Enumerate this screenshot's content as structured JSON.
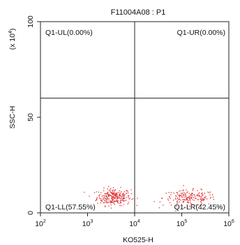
{
  "chart_data": {
    "type": "scatter",
    "title": "F11004A08 : P1",
    "xlabel": "KO525-H",
    "ylabel": "SSC-H",
    "y_multiplier_label": "(x 10",
    "y_multiplier_exp": "4",
    "y_multiplier_close": ")",
    "x_scale": "log",
    "x_range": [
      100,
      1000000
    ],
    "y_range": [
      0,
      100
    ],
    "x_ticks": [
      {
        "base": "10",
        "exp": "2",
        "value": 100
      },
      {
        "base": "10",
        "exp": "3",
        "value": 1000
      },
      {
        "base": "10",
        "exp": "4",
        "value": 10000
      },
      {
        "base": "10",
        "exp": "5",
        "value": 100000
      },
      {
        "base": "10",
        "exp": "6",
        "value": 1000000
      }
    ],
    "y_ticks": [
      {
        "label": "0",
        "value": 0
      },
      {
        "label": "50",
        "value": 50
      },
      {
        "label": "100",
        "value": 100
      }
    ],
    "gate": {
      "x": 10000,
      "y": 60
    },
    "quadrants": {
      "ul": "Q1-UL(0.00%)",
      "ur": "Q1-UR(0.00%)",
      "ll": "Q1-LL(57.55%)",
      "lr": "Q1-LR(42.45%)"
    },
    "point_color": "#e03030",
    "clusters": [
      {
        "name": "LL",
        "x_log_center": 3.55,
        "x_log_spread": 0.18,
        "y_center": 8.5,
        "y_spread": 2.2,
        "count": 260
      },
      {
        "name": "LR",
        "x_log_center": 5.15,
        "x_log_spread": 0.28,
        "y_center": 8.0,
        "y_spread": 2.0,
        "count": 190
      }
    ]
  }
}
